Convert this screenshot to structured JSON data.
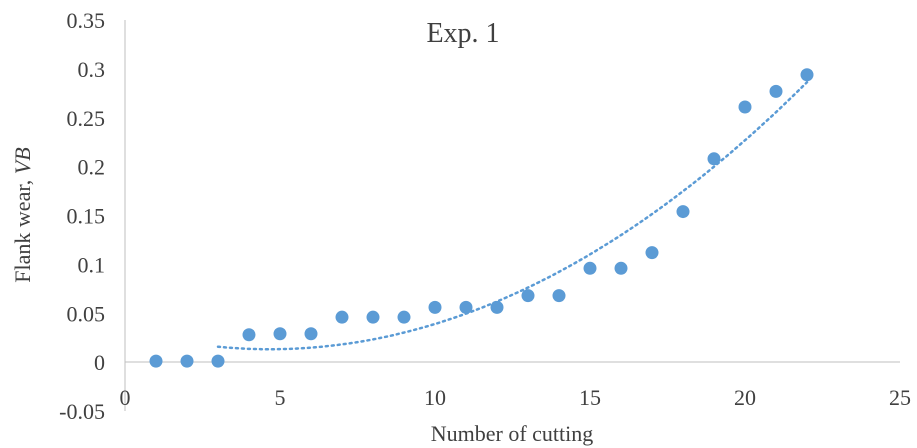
{
  "chart_data": {
    "type": "scatter",
    "title": "Exp. 1",
    "xlabel": "Number of cutting",
    "ylabel_main": "Flank wear, ",
    "ylabel_italic": "VB",
    "xlim": [
      0,
      25
    ],
    "ylim": [
      -0.05,
      0.35
    ],
    "xticks": [
      "0",
      "5",
      "10",
      "15",
      "20",
      "25"
    ],
    "yticks": [
      "-0.05",
      "0",
      "0.05",
      "0.1",
      "0.15",
      "0.2",
      "0.25",
      "0.3",
      "0.35"
    ],
    "grid": false,
    "legend": "none",
    "colors": {
      "points": "#5b9bd5",
      "trendline": "#5b9bd5",
      "axis": "#bfbfbf"
    },
    "series": [
      {
        "x": [
          1,
          2,
          3,
          4,
          5,
          6,
          7,
          8,
          9,
          10,
          11,
          12,
          13,
          14,
          15,
          16,
          17,
          18,
          19,
          20,
          21,
          22
        ],
        "y": [
          0.001,
          0.001,
          0.001,
          0.028,
          0.029,
          0.029,
          0.046,
          0.046,
          0.046,
          0.056,
          0.056,
          0.056,
          0.068,
          0.068,
          0.096,
          0.096,
          0.112,
          0.154,
          0.208,
          0.261,
          0.277,
          0.294
        ]
      }
    ],
    "trendline": {
      "type": "polynomial",
      "x_range": [
        3,
        22
      ],
      "style": "dotted"
    }
  }
}
